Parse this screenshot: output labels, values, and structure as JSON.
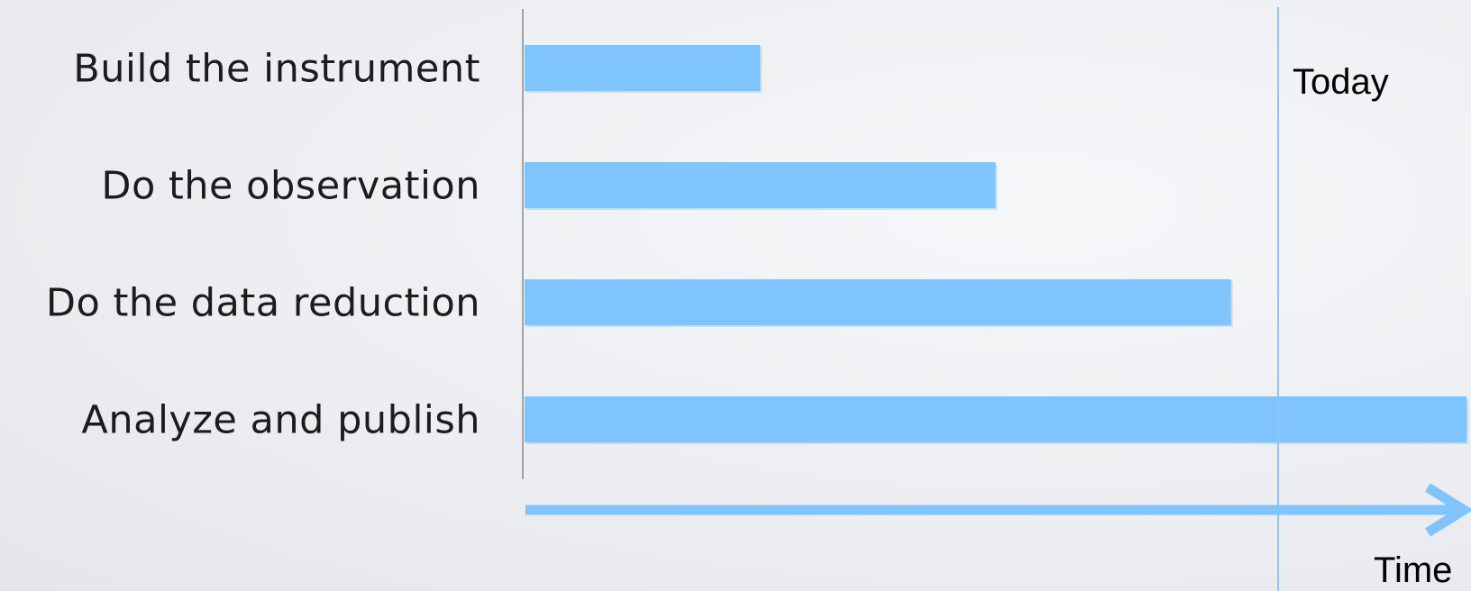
{
  "chart_data": {
    "type": "bar",
    "orientation": "horizontal",
    "categories": [
      "Build the instrument",
      "Do the observation",
      "Do the data reduction",
      "Analyze and publish"
    ],
    "values": [
      0.25,
      0.5,
      0.75,
      1.0
    ],
    "xlabel": "Time",
    "today_marker": {
      "label": "Today",
      "value": 0.8
    },
    "ylim": [
      0,
      1
    ],
    "grid": false,
    "legend": "none",
    "colors": {
      "bar": "#7fc4fd",
      "axis_arrow": "#7fc4fd",
      "today_line": "#8cc6f4",
      "y_axis": "#8a8a8a",
      "text": "#1c1c1c"
    }
  }
}
